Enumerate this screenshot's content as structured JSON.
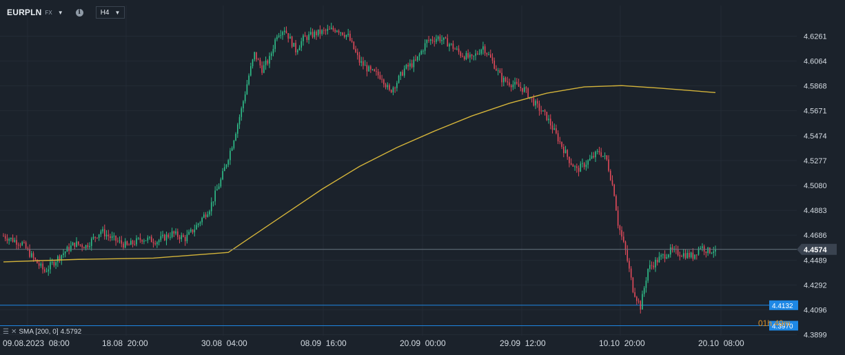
{
  "header": {
    "symbol": "EURPLN",
    "symbol_badge": "FX",
    "info_icon": "info-icon",
    "timeframe": "H4"
  },
  "price_axis": {
    "labels": [
      "4.6261",
      "4.6064",
      "4.5868",
      "4.5671",
      "4.5474",
      "4.5277",
      "4.5080",
      "4.4883",
      "4.4686",
      "4.4489",
      "4.4292",
      "4.4096",
      "4.3899"
    ],
    "current_price": "4.4574",
    "h_lines": [
      {
        "label": "4.4132",
        "price": 4.4132,
        "color": "#1e88e5"
      },
      {
        "label": "4.3970",
        "price": 4.397,
        "color": "#1e88e5"
      }
    ]
  },
  "time_axis": {
    "labels": [
      "09.08.2023  08:00",
      "18.08  20:00",
      "30.08  04:00",
      "08.09  16:00",
      "20.09  00:00",
      "29.09  12:00",
      "10.10  20:00",
      "20.10  08:00"
    ]
  },
  "indicator": {
    "label": "SMA [200,  0]",
    "value": "4.5792",
    "color": "#d4b43a"
  },
  "countdown": "01h 49m",
  "colors": {
    "background": "#1b222b",
    "up": "#2fbf8a",
    "down": "#e04a5a",
    "price_tag": "#3a4350",
    "line_tag": "#1e88e5"
  },
  "chart_data": {
    "type": "candlestick",
    "timeframe": "H4",
    "y_range": [
      4.3899,
      4.6261
    ],
    "ticks": [
      4.6261,
      4.6064,
      4.5868,
      4.5671,
      4.5474,
      4.5277,
      4.508,
      4.4883,
      4.4686,
      4.4489,
      4.4292,
      4.4096,
      4.3899
    ],
    "last_price": 4.4574,
    "price_path": [
      [
        0,
        4.468
      ],
      [
        10,
        4.462
      ],
      [
        16,
        4.45
      ],
      [
        22,
        4.44
      ],
      [
        30,
        4.452
      ],
      [
        38,
        4.462
      ],
      [
        44,
        4.46
      ],
      [
        52,
        4.472
      ],
      [
        58,
        4.466
      ],
      [
        66,
        4.46
      ],
      [
        74,
        4.466
      ],
      [
        82,
        4.464
      ],
      [
        90,
        4.47
      ],
      [
        97,
        4.466
      ],
      [
        102,
        4.474
      ],
      [
        110,
        4.49
      ],
      [
        116,
        4.512
      ],
      [
        122,
        4.54
      ],
      [
        127,
        4.568
      ],
      [
        131,
        4.595
      ],
      [
        134,
        4.612
      ],
      [
        138,
        4.6
      ],
      [
        142,
        4.608
      ],
      [
        146,
        4.628
      ],
      [
        150,
        4.632
      ],
      [
        156,
        4.615
      ],
      [
        160,
        4.624
      ],
      [
        166,
        4.628
      ],
      [
        172,
        4.63
      ],
      [
        178,
        4.632
      ],
      [
        184,
        4.626
      ],
      [
        190,
        4.606
      ],
      [
        196,
        4.598
      ],
      [
        202,
        4.594
      ],
      [
        206,
        4.582
      ],
      [
        210,
        4.59
      ],
      [
        214,
        4.6
      ],
      [
        220,
        4.606
      ],
      [
        226,
        4.622
      ],
      [
        232,
        4.625
      ],
      [
        238,
        4.62
      ],
      [
        244,
        4.612
      ],
      [
        250,
        4.608
      ],
      [
        256,
        4.618
      ],
      [
        261,
        4.606
      ],
      [
        266,
        4.592
      ],
      [
        272,
        4.588
      ],
      [
        278,
        4.584
      ],
      [
        284,
        4.572
      ],
      [
        290,
        4.562
      ],
      [
        296,
        4.545
      ],
      [
        302,
        4.528
      ],
      [
        306,
        4.52
      ],
      [
        312,
        4.527
      ],
      [
        318,
        4.535
      ],
      [
        322,
        4.528
      ],
      [
        326,
        4.502
      ],
      [
        328,
        4.478
      ],
      [
        332,
        4.456
      ],
      [
        336,
        4.426
      ],
      [
        340,
        4.412
      ],
      [
        344,
        4.442
      ],
      [
        350,
        4.45
      ],
      [
        356,
        4.456
      ],
      [
        362,
        4.454
      ],
      [
        368,
        4.452
      ],
      [
        372,
        4.46
      ],
      [
        376,
        4.456
      ],
      [
        380,
        4.4574
      ]
    ],
    "sma": {
      "name": "SMA",
      "period": 200,
      "offset": 0,
      "last_value": 4.5792,
      "points": [
        [
          0,
          4.4475
        ],
        [
          40,
          4.4495
        ],
        [
          80,
          4.4505
        ],
        [
          120,
          4.455
        ],
        [
          130,
          4.465
        ],
        [
          150,
          4.485
        ],
        [
          170,
          4.505
        ],
        [
          190,
          4.523
        ],
        [
          210,
          4.538
        ],
        [
          230,
          4.551
        ],
        [
          250,
          4.563
        ],
        [
          270,
          4.573
        ],
        [
          290,
          4.581
        ],
        [
          310,
          4.586
        ],
        [
          330,
          4.587
        ],
        [
          350,
          4.585
        ],
        [
          380,
          4.5815
        ]
      ]
    }
  }
}
